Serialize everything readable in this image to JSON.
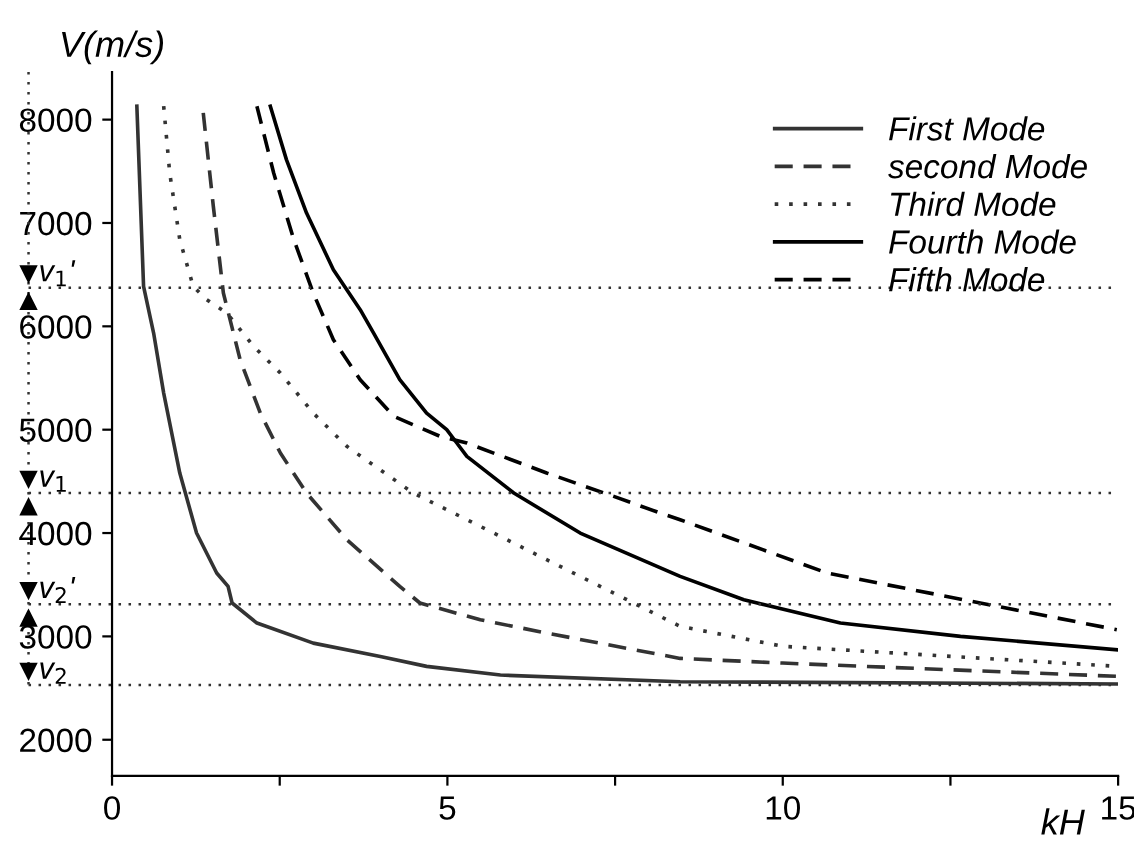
{
  "chart_data": {
    "type": "line",
    "xlabel": "kH",
    "ylabel": "V(m/s)",
    "xlim": [
      0,
      15
    ],
    "ylim": [
      1650,
      8460
    ],
    "xticks": [
      0,
      {
        "value": 2.5,
        "label": null
      },
      5,
      {
        "value": 7.5,
        "label": null
      },
      10,
      {
        "value": 12.5,
        "label": null
      },
      15
    ],
    "yticks": [
      2000,
      3000,
      4000,
      5000,
      6000,
      7000,
      8000
    ],
    "grid": false,
    "legend": "top right",
    "series": [
      {
        "name": "First Mode",
        "color": "#333333",
        "line_style": "solid",
        "x": [
          0.37,
          0.47,
          0.62,
          0.77,
          1.01,
          1.26,
          1.56,
          1.73,
          1.79,
          2.16,
          3.0,
          4.0,
          4.69,
          5.79,
          8.47,
          15
        ],
        "values": [
          8130,
          6387,
          5935,
          5354,
          4580,
          4000,
          3613,
          3484,
          3323,
          3129,
          2935,
          2806,
          2710,
          2626,
          2561,
          2540
        ]
      },
      {
        "name": "second Mode",
        "color": "#333333",
        "line_style": "dashed",
        "x": [
          1.36,
          1.51,
          1.66,
          1.91,
          2.21,
          2.51,
          2.9,
          3.5,
          4.29,
          4.59,
          5.49,
          6.48,
          8.47,
          10,
          12.5,
          15
        ],
        "values": [
          8065,
          7162,
          6322,
          5677,
          5161,
          4774,
          4387,
          3936,
          3484,
          3323,
          3161,
          3032,
          2787,
          2742,
          2677,
          2613
        ]
      },
      {
        "name": "Third Mode",
        "color": "#333333",
        "line_style": "dotted",
        "x": [
          0.77,
          0.86,
          1.01,
          1.21,
          1.41,
          1.71,
          2.11,
          2.51,
          3.0,
          3.5,
          4.49,
          5.49,
          6.48,
          7.48,
          8.47,
          10,
          15
        ],
        "values": [
          8130,
          7483,
          6839,
          6387,
          6258,
          6129,
          5807,
          5548,
          5161,
          4839,
          4387,
          4065,
          3742,
          3419,
          3097,
          2904,
          2710
        ]
      },
      {
        "name": "Fourth Mode",
        "color": "#000000",
        "line_style": "solid",
        "x": [
          2.36,
          2.6,
          2.9,
          3.3,
          3.7,
          3.9,
          4.29,
          4.69,
          4.99,
          5.14,
          5.29,
          5.99,
          6.98,
          8.47,
          9.42,
          10.86,
          12.65,
          14.98
        ],
        "values": [
          8130,
          7613,
          7096,
          6548,
          6161,
          5935,
          5484,
          5161,
          5000,
          4871,
          4742,
          4387,
          4000,
          3581,
          3355,
          3129,
          3000,
          2871
        ]
      },
      {
        "name": "Fifth Mode",
        "color": "#000000",
        "line_style": "dashed",
        "x": [
          2.16,
          2.41,
          2.71,
          3.0,
          3.3,
          3.7,
          4.2,
          4.89,
          5.29,
          6.48,
          7.48,
          8.17,
          8.47,
          10.66,
          14.98
        ],
        "values": [
          8130,
          7483,
          6839,
          6322,
          5871,
          5484,
          5129,
          4936,
          4871,
          4581,
          4355,
          4194,
          4129,
          3613,
          3065
        ]
      }
    ],
    "ref_lines": [
      {
        "axis": "y",
        "value": 6374,
        "label": "v$_{1}$'",
        "line_style": "dotted",
        "color": "#333333"
      },
      {
        "axis": "y",
        "value": 4387,
        "label": "v$_{1}$",
        "line_style": "dotted",
        "color": "#333333"
      },
      {
        "axis": "y",
        "value": 3310,
        "label": "v$_{2}$'",
        "line_style": "dotted",
        "color": "#333333"
      },
      {
        "axis": "y",
        "value": 2529,
        "label": "v$_{2}$",
        "line_style": "dotted",
        "color": "#333333"
      }
    ]
  }
}
